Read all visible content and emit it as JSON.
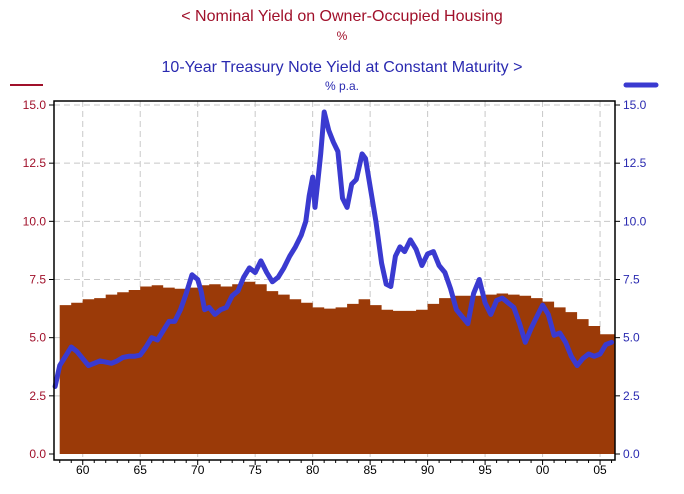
{
  "colors": {
    "housing": "#9b3a08",
    "housing_text": "#a0102a",
    "treasury": "#3a3ad0",
    "treasury_text": "#2a2ab0",
    "grid": "#c8c8c8",
    "axis": "#000000"
  },
  "chart_data": {
    "type": "area",
    "title": "<  Nominal Yield on Owner-Occupied Housing",
    "subtitle": "10-Year Treasury Note Yield at Constant Maturity  >",
    "left_unit": "%",
    "right_unit": "% p.a.",
    "xlabel": "",
    "ylabel": "",
    "xlim": [
      1957.5,
      2006.3
    ],
    "ylim": [
      0,
      15
    ],
    "x_ticks": [
      1960,
      1965,
      1970,
      1975,
      1980,
      1985,
      1990,
      1995,
      2000,
      2005
    ],
    "x_tick_labels": [
      "60",
      "65",
      "70",
      "75",
      "80",
      "85",
      "90",
      "95",
      "00",
      "05"
    ],
    "y_ticks": [
      0,
      2.5,
      5,
      7.5,
      10,
      12.5,
      15
    ],
    "y_tick_labels": [
      "0.0",
      "2.5",
      "5.0",
      "7.5",
      "10.0",
      "12.5",
      "15.0"
    ],
    "grid": true,
    "series": [
      {
        "name": "Nominal Yield on Owner-Occupied Housing",
        "axis": "left",
        "type": "area",
        "x": [
          1958,
          1959,
          1960,
          1961,
          1962,
          1963,
          1964,
          1965,
          1966,
          1967,
          1968,
          1969,
          1970,
          1971,
          1972,
          1973,
          1974,
          1975,
          1976,
          1977,
          1978,
          1979,
          1980,
          1981,
          1982,
          1983,
          1984,
          1985,
          1986,
          1987,
          1988,
          1989,
          1990,
          1991,
          1992,
          1993,
          1994,
          1995,
          1996,
          1997,
          1998,
          1999,
          2000,
          2001,
          2002,
          2003,
          2004,
          2005,
          2006
        ],
        "values": [
          6.4,
          6.5,
          6.65,
          6.7,
          6.85,
          6.95,
          7.05,
          7.2,
          7.25,
          7.15,
          7.1,
          7.15,
          7.25,
          7.3,
          7.2,
          7.3,
          7.4,
          7.3,
          7.0,
          6.85,
          6.65,
          6.5,
          6.3,
          6.25,
          6.3,
          6.45,
          6.65,
          6.4,
          6.2,
          6.15,
          6.15,
          6.2,
          6.45,
          6.7,
          6.8,
          6.8,
          6.8,
          6.85,
          6.9,
          6.85,
          6.8,
          6.7,
          6.55,
          6.3,
          6.1,
          5.8,
          5.5,
          5.15,
          5.15
        ]
      },
      {
        "name": "10-Year Treasury Note Yield at Constant Maturity",
        "axis": "right",
        "type": "line",
        "x": [
          1957.6,
          1958.0,
          1958.5,
          1959.0,
          1959.5,
          1960.0,
          1960.5,
          1961.0,
          1961.5,
          1962.0,
          1962.5,
          1963.0,
          1963.5,
          1964.0,
          1964.5,
          1965.0,
          1965.5,
          1966.0,
          1966.5,
          1967.0,
          1967.5,
          1968.0,
          1968.5,
          1969.0,
          1969.5,
          1970.0,
          1970.3,
          1970.6,
          1971.0,
          1971.5,
          1972.0,
          1972.5,
          1973.0,
          1973.5,
          1974.0,
          1974.5,
          1975.0,
          1975.5,
          1976.0,
          1976.5,
          1977.0,
          1977.5,
          1978.0,
          1978.5,
          1979.0,
          1979.4,
          1979.7,
          1980.0,
          1980.2,
          1980.4,
          1980.7,
          1981.0,
          1981.4,
          1981.8,
          1982.2,
          1982.6,
          1983.0,
          1983.4,
          1983.8,
          1984.3,
          1984.6,
          1985.0,
          1985.5,
          1986.0,
          1986.4,
          1986.8,
          1987.2,
          1987.6,
          1988.0,
          1988.5,
          1989.0,
          1989.5,
          1990.0,
          1990.5,
          1991.0,
          1991.5,
          1992.0,
          1992.5,
          1993.0,
          1993.5,
          1994.0,
          1994.5,
          1995.0,
          1995.5,
          1996.0,
          1996.5,
          1997.0,
          1997.5,
          1998.0,
          1998.5,
          1999.0,
          1999.5,
          2000.0,
          2000.5,
          2001.0,
          2001.5,
          2002.0,
          2002.5,
          2003.0,
          2003.5,
          2004.0,
          2004.5,
          2005.0,
          2005.5,
          2006.0
        ],
        "values": [
          2.9,
          3.8,
          4.2,
          4.6,
          4.4,
          4.1,
          3.8,
          3.9,
          4.0,
          3.95,
          3.9,
          4.0,
          4.15,
          4.2,
          4.2,
          4.25,
          4.6,
          5.0,
          4.9,
          5.3,
          5.7,
          5.7,
          6.2,
          6.9,
          7.7,
          7.5,
          7.0,
          6.2,
          6.3,
          6.0,
          6.2,
          6.3,
          6.8,
          7.0,
          7.6,
          8.0,
          7.8,
          8.3,
          7.8,
          7.4,
          7.6,
          8.0,
          8.5,
          8.9,
          9.4,
          10.0,
          11.1,
          11.9,
          10.6,
          11.5,
          12.9,
          14.7,
          13.9,
          13.4,
          13.0,
          11.0,
          10.6,
          11.6,
          11.8,
          12.9,
          12.7,
          11.5,
          10.0,
          8.2,
          7.3,
          7.2,
          8.5,
          8.9,
          8.7,
          9.2,
          8.8,
          8.1,
          8.6,
          8.7,
          8.1,
          7.8,
          7.1,
          6.2,
          5.9,
          5.6,
          6.9,
          7.5,
          6.5,
          6.0,
          6.6,
          6.7,
          6.5,
          6.3,
          5.6,
          4.8,
          5.4,
          5.9,
          6.4,
          6.0,
          5.1,
          5.2,
          4.8,
          4.2,
          3.8,
          4.1,
          4.3,
          4.2,
          4.3,
          4.7,
          4.8
        ]
      }
    ]
  }
}
